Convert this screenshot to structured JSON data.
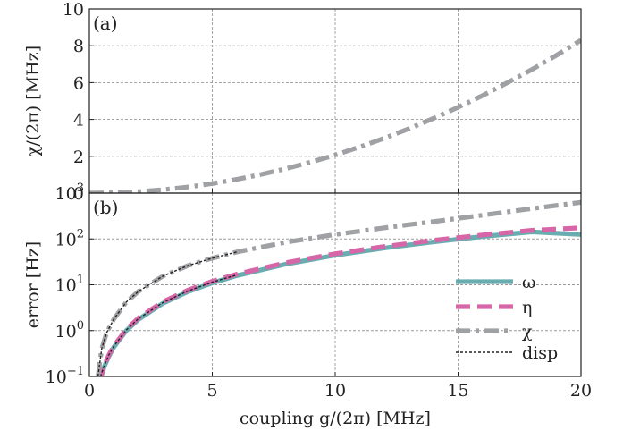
{
  "chart_data": [
    {
      "panel_label": "(a)",
      "type": "line",
      "ylabel": "χ/(2π) [MHz]",
      "xlim": [
        0,
        20
      ],
      "ylim": [
        0,
        10
      ],
      "yscale": "linear",
      "x_ticks": [
        0,
        5,
        10,
        15,
        20
      ],
      "y_ticks": [
        0,
        2,
        4,
        6,
        8,
        10
      ],
      "y_tick_labels": [
        "0",
        "2",
        "4",
        "6",
        "8",
        "10"
      ],
      "grid": true,
      "series": [
        {
          "key": "chi",
          "style": "dashdot",
          "color": "#a0a1a4",
          "x": [
            0,
            1,
            2,
            3,
            4,
            5,
            6,
            7,
            8,
            9,
            10,
            11,
            12,
            13,
            14,
            15,
            16,
            17,
            18,
            19,
            20
          ],
          "y": [
            0,
            0.02,
            0.08,
            0.19,
            0.33,
            0.52,
            0.75,
            1.02,
            1.33,
            1.68,
            2.07,
            2.51,
            2.98,
            3.5,
            4.06,
            4.66,
            5.3,
            5.99,
            6.71,
            7.48,
            8.3
          ]
        }
      ]
    },
    {
      "panel_label": "(b)",
      "type": "line",
      "xlabel": "coupling g/(2π) [MHz]",
      "ylabel": "error [Hz]",
      "xlim": [
        0,
        20
      ],
      "ylim": [
        0.1,
        1000
      ],
      "yscale": "log",
      "x_ticks": [
        0,
        5,
        10,
        15,
        20
      ],
      "x_tick_labels": [
        "0",
        "5",
        "10",
        "15",
        "20"
      ],
      "y_ticks": [
        0.1,
        1,
        10,
        100,
        1000
      ],
      "y_tick_labels": [
        {
          "base": "10",
          "exp": "−1"
        },
        {
          "base": "10",
          "exp": "0"
        },
        {
          "base": "10",
          "exp": "1"
        },
        {
          "base": "10",
          "exp": "2"
        },
        {
          "base": "10",
          "exp": "3"
        }
      ],
      "grid": true,
      "legend_position": "lower-right",
      "series": [
        {
          "key": "omega",
          "name": "ω",
          "style": "solid",
          "color": "#6aadb1",
          "x": [
            0.4,
            0.6,
            0.8,
            1,
            1.5,
            2,
            3,
            4,
            5,
            6,
            8,
            10,
            12,
            14,
            16,
            18,
            20
          ],
          "y": [
            0.07,
            0.16,
            0.28,
            0.44,
            1.0,
            1.76,
            3.96,
            7.04,
            11.0,
            15.8,
            28.2,
            44.0,
            63.4,
            86.2,
            113,
            142,
            125
          ]
        },
        {
          "key": "eta",
          "name": "η",
          "style": "dashed",
          "color": "#d666a8",
          "x": [
            0.4,
            0.6,
            0.8,
            1,
            1.5,
            2,
            3,
            4,
            5,
            6,
            8,
            10,
            12,
            14,
            16,
            18,
            20
          ],
          "y": [
            0.075,
            0.17,
            0.3,
            0.47,
            1.06,
            1.9,
            4.27,
            7.6,
            11.9,
            17.1,
            30.4,
            47.5,
            68.4,
            93.1,
            122,
            154,
            175
          ]
        },
        {
          "key": "chi",
          "name": "χ",
          "style": "dashdot",
          "color": "#a0a1a4",
          "x": [
            0.35,
            0.5,
            0.7,
            1,
            1.5,
            2,
            3,
            4,
            5,
            6,
            8,
            10,
            12,
            14,
            16,
            18,
            20
          ],
          "y": [
            0.1,
            0.4,
            0.9,
            1.8,
            4.2,
            7.2,
            15.5,
            26,
            38,
            52,
            85,
            125,
            175,
            240,
            330,
            460,
            630
          ]
        },
        {
          "key": "disp",
          "name": "disp",
          "style": "dotted",
          "color": "#222222",
          "x": [
            0.35,
            0.5,
            0.7,
            1,
            1.5,
            2,
            3,
            4,
            5,
            6
          ],
          "y": [
            0.1,
            0.4,
            0.9,
            1.8,
            4.2,
            7.2,
            15.5,
            26,
            38,
            52
          ],
          "x2": [
            0.4,
            0.6,
            0.8,
            1,
            1.5,
            2,
            3,
            4,
            5,
            6
          ],
          "y2": [
            0.08,
            0.17,
            0.3,
            0.46,
            1.03,
            1.83,
            4.1,
            7.3,
            11.4,
            16.4
          ]
        }
      ]
    }
  ]
}
